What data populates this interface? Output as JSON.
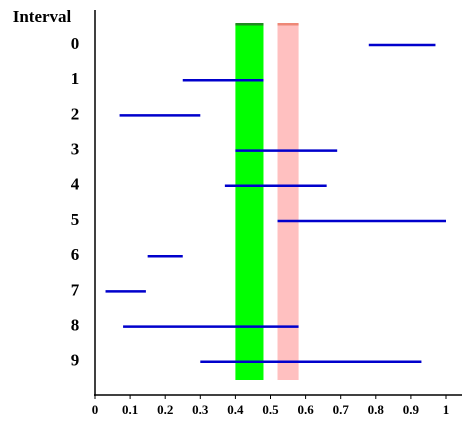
{
  "chart_data": {
    "type": "interval",
    "y_label": "Interval",
    "categories": [
      "0",
      "1",
      "2",
      "3",
      "4",
      "5",
      "6",
      "7",
      "8",
      "9"
    ],
    "intervals": [
      [
        0.78,
        0.97
      ],
      [
        0.25,
        0.48
      ],
      [
        0.07,
        0.3
      ],
      [
        0.4,
        0.69
      ],
      [
        0.37,
        0.66
      ],
      [
        0.52,
        1.0
      ],
      [
        0.15,
        0.25
      ],
      [
        0.03,
        0.145
      ],
      [
        0.08,
        0.58
      ],
      [
        0.3,
        0.93
      ]
    ],
    "color": "#0000cc",
    "bands": [
      {
        "range": [
          0.4,
          0.48
        ],
        "color": "#00ff00",
        "edge_color": "#228822"
      },
      {
        "range": [
          0.52,
          0.58
        ],
        "color": "#ffc0c0",
        "edge_color": "#ee8877"
      }
    ],
    "xlim": [
      0,
      1
    ],
    "xticks": [
      0,
      0.1,
      0.2,
      0.3,
      0.4,
      0.5,
      0.6,
      0.7,
      0.8,
      0.9,
      1
    ]
  }
}
